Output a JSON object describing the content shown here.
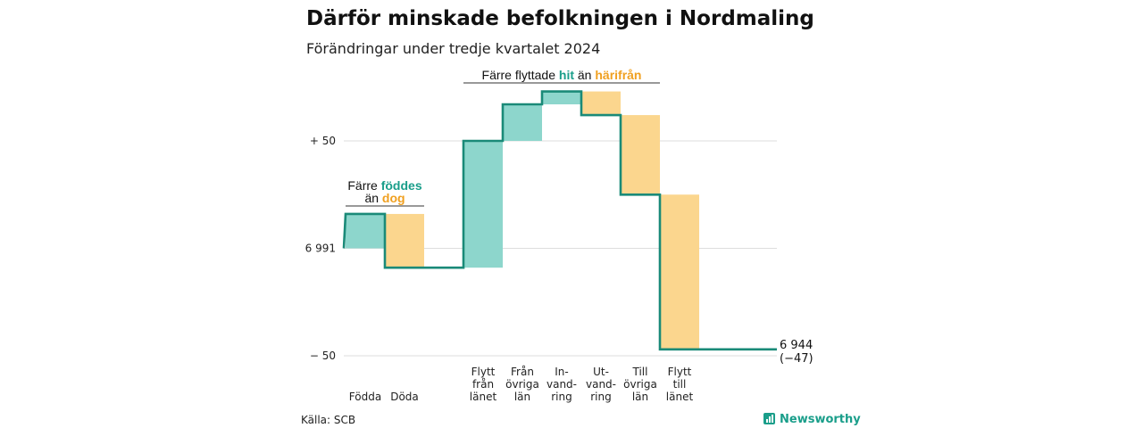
{
  "title": "Därför minskade befolkningen i Nordmaling",
  "subtitle": "Förändringar under tredje kvartalet 2024",
  "source": "Källa: SCB",
  "brand": "Newsworthy",
  "colors": {
    "increase": "#8dd6cc",
    "decrease": "#fbd68e",
    "line": "#1a8a78",
    "accent_teal": "#1a9e8a",
    "accent_orange": "#f0a020",
    "grid": "#dddddd"
  },
  "chart_data": {
    "type": "waterfall",
    "title": "Därför minskade befolkningen i Nordmaling",
    "subtitle": "Förändringar under tredje kvartalet 2024",
    "start_value": 6991,
    "end_value": 6944,
    "end_label": "6 944",
    "end_change_label": "(−47)",
    "ylim": [
      -50,
      50
    ],
    "yticks": [
      {
        "value": 50,
        "label": "+ 50"
      },
      {
        "value": 0,
        "label": "6 991"
      },
      {
        "value": -50,
        "label": "− 50"
      }
    ],
    "categories": [
      {
        "label": [
          "Födda"
        ],
        "change": 16
      },
      {
        "label": [
          "Döda"
        ],
        "change": -25
      },
      {
        "label": [
          ""
        ],
        "change": 0
      },
      {
        "label": [
          "Flytt",
          "från",
          "länet"
        ],
        "change": 59
      },
      {
        "label": [
          "Från",
          "övriga",
          "län"
        ],
        "change": 17
      },
      {
        "label": [
          "In-",
          "vand-",
          "ring"
        ],
        "change": 6
      },
      {
        "label": [
          "Ut-",
          "vand-",
          "ring"
        ],
        "change": -11
      },
      {
        "label": [
          "Till",
          "övriga",
          "län"
        ],
        "change": -37
      },
      {
        "label": [
          "Flytt",
          "till",
          "länet"
        ],
        "change": -72
      }
    ],
    "annotations": [
      {
        "lines": [
          [
            {
              "text": "Färre ",
              "style": "plain"
            },
            {
              "text": "föddes",
              "style": "teal"
            }
          ],
          [
            {
              "text": "än ",
              "style": "plain"
            },
            {
              "text": "dog",
              "style": "orange"
            }
          ]
        ],
        "from_index": 0,
        "to_index": 1
      },
      {
        "lines": [
          [
            {
              "text": "Färre flyttade ",
              "style": "plain"
            },
            {
              "text": "hit",
              "style": "teal"
            },
            {
              "text": "  än ",
              "style": "plain"
            },
            {
              "text": "härifrån",
              "style": "orange"
            }
          ]
        ],
        "from_index": 3,
        "to_index": 7
      }
    ]
  }
}
